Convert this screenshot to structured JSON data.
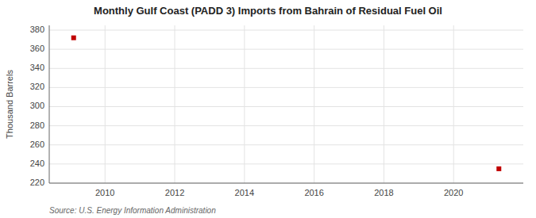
{
  "chart_data": {
    "type": "scatter",
    "title": "Monthly Gulf Coast (PADD 3) Imports from Bahrain of Residual Fuel Oil",
    "ylabel": "Thousand Barrels",
    "source": "Source: U.S. Energy Information Administration",
    "x": [
      2009.1,
      2021.3
    ],
    "values": [
      372,
      235
    ],
    "color": "#c00000",
    "marker": "square",
    "xlim": [
      2008.4,
      2022.0
    ],
    "ylim": [
      220,
      385
    ],
    "xticks": [
      2010,
      2012,
      2014,
      2016,
      2018,
      2020
    ],
    "yticks": [
      220,
      240,
      260,
      280,
      300,
      320,
      340,
      360,
      380
    ],
    "grid": true
  }
}
